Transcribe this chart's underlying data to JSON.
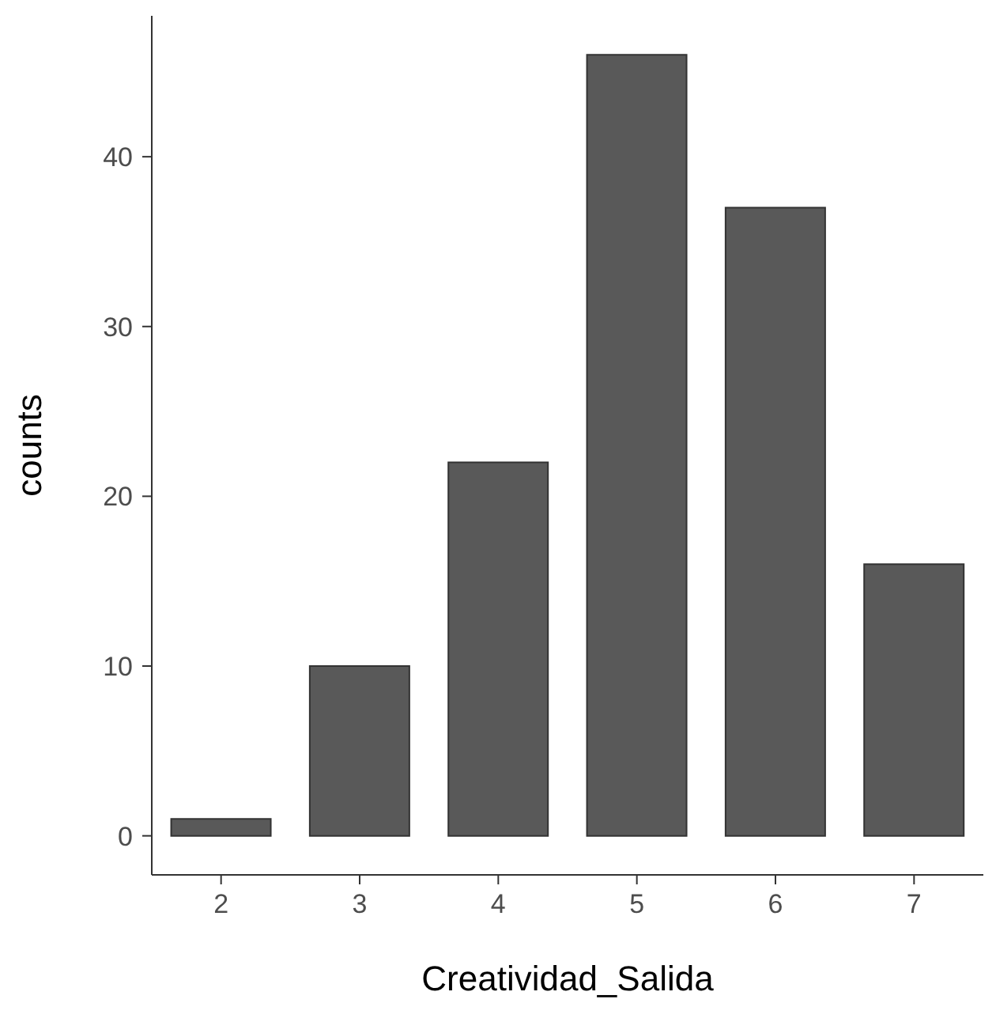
{
  "chart_data": {
    "type": "bar",
    "xlabel": "Creatividad_Salida",
    "ylabel": "counts",
    "categories": [
      "2",
      "3",
      "4",
      "5",
      "6",
      "7"
    ],
    "series": [
      {
        "color": "#595959",
        "values": [
          1,
          10,
          22,
          46,
          37,
          16
        ]
      }
    ],
    "ylim": [
      -2.3,
      48.3
    ],
    "yticks": [
      0,
      10,
      20,
      30,
      40
    ],
    "grid": false,
    "legend": false
  }
}
